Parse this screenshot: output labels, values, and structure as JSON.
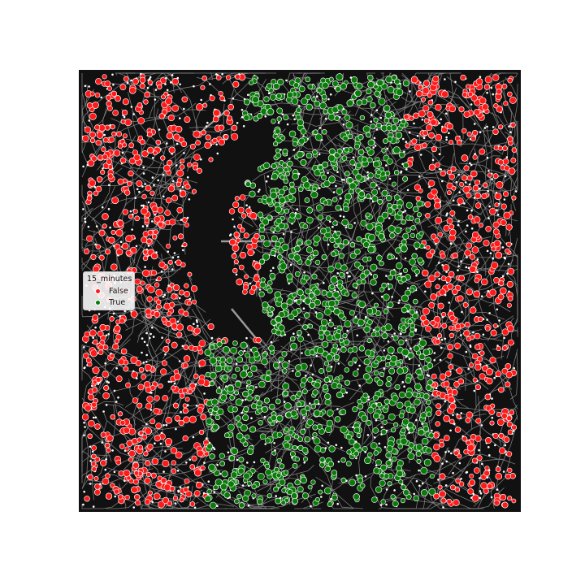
{
  "map": {
    "background_color": "#111111",
    "road_color": "#8a8a8a",
    "node_color": "#ffffff",
    "reachable_color": "#0a7a0a",
    "unreachable_color": "#ff1a1a"
  },
  "legend": {
    "title": "15_minutes",
    "placement": "center-left",
    "entries": [
      {
        "label": "False",
        "color": "#ff1a1a"
      },
      {
        "label": "True",
        "color": "#0a7a0a"
      }
    ]
  }
}
